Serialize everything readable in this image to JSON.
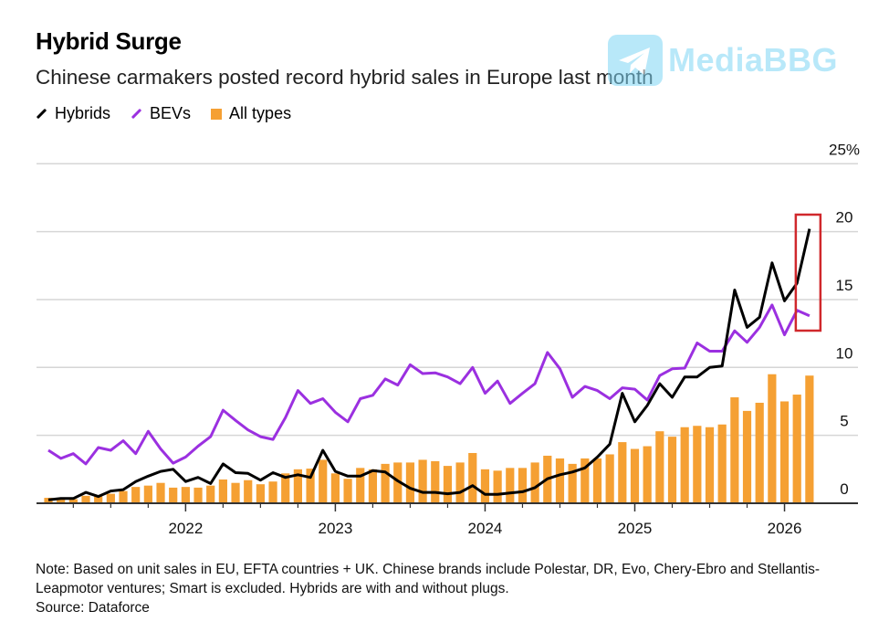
{
  "header": {
    "title": "Hybrid Surge",
    "subtitle": "Chinese carmakers posted record hybrid sales in Europe last month"
  },
  "legend": [
    {
      "label": "Hybrids",
      "color": "#000000",
      "shape": "line"
    },
    {
      "label": "BEVs",
      "color": "#9b30e0",
      "shape": "line"
    },
    {
      "label": "All types",
      "color": "#f5a033",
      "shape": "square"
    }
  ],
  "watermark": {
    "text": "MediaBBG",
    "icon": "telegram-plane-icon",
    "color": "#7fd6f5"
  },
  "footer": {
    "note": "Note: Based on unit sales in EU, EFTA countries + UK. Chinese brands include Polestar, DR, Evo, Chery-Ebro and Stellantis-Leapmotor ventures; Smart is excluded. Hybrids are with and without plugs.",
    "source": "Source: Dataforce"
  },
  "chart_data": {
    "type": "bar+line",
    "title": "Hybrid Surge",
    "xlabel": "",
    "ylabel": "",
    "y_unit": "%",
    "ylim": [
      0,
      25
    ],
    "yticks": [
      0,
      5,
      10,
      15,
      20,
      25
    ],
    "ytick_labels": [
      "0",
      "5",
      "10",
      "15",
      "20",
      "25%"
    ],
    "y_axis_position": "right",
    "xtick_labels": [
      "2022",
      "2023",
      "2024",
      "2025",
      "2026"
    ],
    "grid": true,
    "legend_position": "top-left",
    "highlight": {
      "months": [
        "2026-03"
      ],
      "color": "#d0282c"
    },
    "x": [
      "2021-02",
      "2021-03",
      "2021-04",
      "2021-05",
      "2021-06",
      "2021-07",
      "2021-08",
      "2021-09",
      "2021-10",
      "2021-11",
      "2021-12",
      "2022-01",
      "2022-02",
      "2022-03",
      "2022-04",
      "2022-05",
      "2022-06",
      "2022-07",
      "2022-08",
      "2022-09",
      "2022-10",
      "2022-11",
      "2022-12",
      "2023-01",
      "2023-02",
      "2023-03",
      "2023-04",
      "2023-05",
      "2023-06",
      "2023-07",
      "2023-08",
      "2023-09",
      "2023-10",
      "2023-11",
      "2023-12",
      "2024-01",
      "2024-02",
      "2024-03",
      "2024-04",
      "2024-05",
      "2024-06",
      "2024-07",
      "2024-08",
      "2024-09",
      "2024-10",
      "2024-11",
      "2024-12",
      "2025-01",
      "2025-02",
      "2025-03",
      "2025-04",
      "2025-05",
      "2025-06",
      "2025-07",
      "2025-08",
      "2025-09",
      "2025-10",
      "2025-11",
      "2025-12",
      "2026-01",
      "2026-02",
      "2026-03"
    ],
    "series": [
      {
        "name": "All types",
        "type": "bar",
        "color": "#f5a033",
        "values": [
          0.4,
          0.4,
          0.3,
          0.55,
          0.5,
          0.7,
          0.9,
          1.2,
          1.3,
          1.5,
          1.15,
          1.2,
          1.15,
          1.3,
          1.75,
          1.5,
          1.7,
          1.4,
          1.6,
          2.2,
          2.5,
          2.55,
          3.2,
          2.2,
          1.8,
          2.6,
          2.5,
          2.9,
          3.0,
          3.0,
          3.2,
          3.1,
          2.75,
          3.0,
          3.7,
          2.5,
          2.4,
          2.6,
          2.6,
          3.0,
          3.5,
          3.3,
          2.9,
          3.3,
          3.3,
          3.6,
          4.5,
          4.0,
          4.2,
          5.3,
          4.9,
          5.6,
          5.7,
          5.6,
          5.8,
          7.8,
          6.8,
          7.4,
          9.5,
          7.5,
          8.0,
          9.4
        ]
      },
      {
        "name": "BEVs",
        "type": "line",
        "color": "#9b30e0",
        "values": [
          3.9,
          3.3,
          3.65,
          2.9,
          4.1,
          3.9,
          4.6,
          3.65,
          5.3,
          4.0,
          2.95,
          3.4,
          4.2,
          4.9,
          6.85,
          6.1,
          5.4,
          4.9,
          4.7,
          6.3,
          8.3,
          7.35,
          7.7,
          6.7,
          6.0,
          7.7,
          7.95,
          9.15,
          8.7,
          10.2,
          9.55,
          9.6,
          9.3,
          8.8,
          10.0,
          8.1,
          9.0,
          7.35,
          8.1,
          8.8,
          11.1,
          9.9,
          7.8,
          8.6,
          8.3,
          7.7,
          8.5,
          8.4,
          7.6,
          9.4,
          9.9,
          9.95,
          11.8,
          11.2,
          11.2,
          12.7,
          11.85,
          12.95,
          14.6,
          12.4,
          14.2,
          13.8
        ]
      },
      {
        "name": "Hybrids",
        "type": "line",
        "color": "#000000",
        "values": [
          0.25,
          0.35,
          0.35,
          0.8,
          0.5,
          0.9,
          1.0,
          1.6,
          2.0,
          2.35,
          2.5,
          1.6,
          1.9,
          1.45,
          2.9,
          2.25,
          2.2,
          1.7,
          2.25,
          1.9,
          2.1,
          1.9,
          3.9,
          2.35,
          2.0,
          2.0,
          2.4,
          2.3,
          1.65,
          1.1,
          0.8,
          0.8,
          0.7,
          0.8,
          1.3,
          0.65,
          0.65,
          0.75,
          0.85,
          1.15,
          1.8,
          2.1,
          2.3,
          2.6,
          3.4,
          4.35,
          8.1,
          6.0,
          7.2,
          8.8,
          7.8,
          9.3,
          9.3,
          10.0,
          10.1,
          15.7,
          12.95,
          13.7,
          17.7,
          14.9,
          16.2,
          20.2
        ]
      }
    ]
  }
}
